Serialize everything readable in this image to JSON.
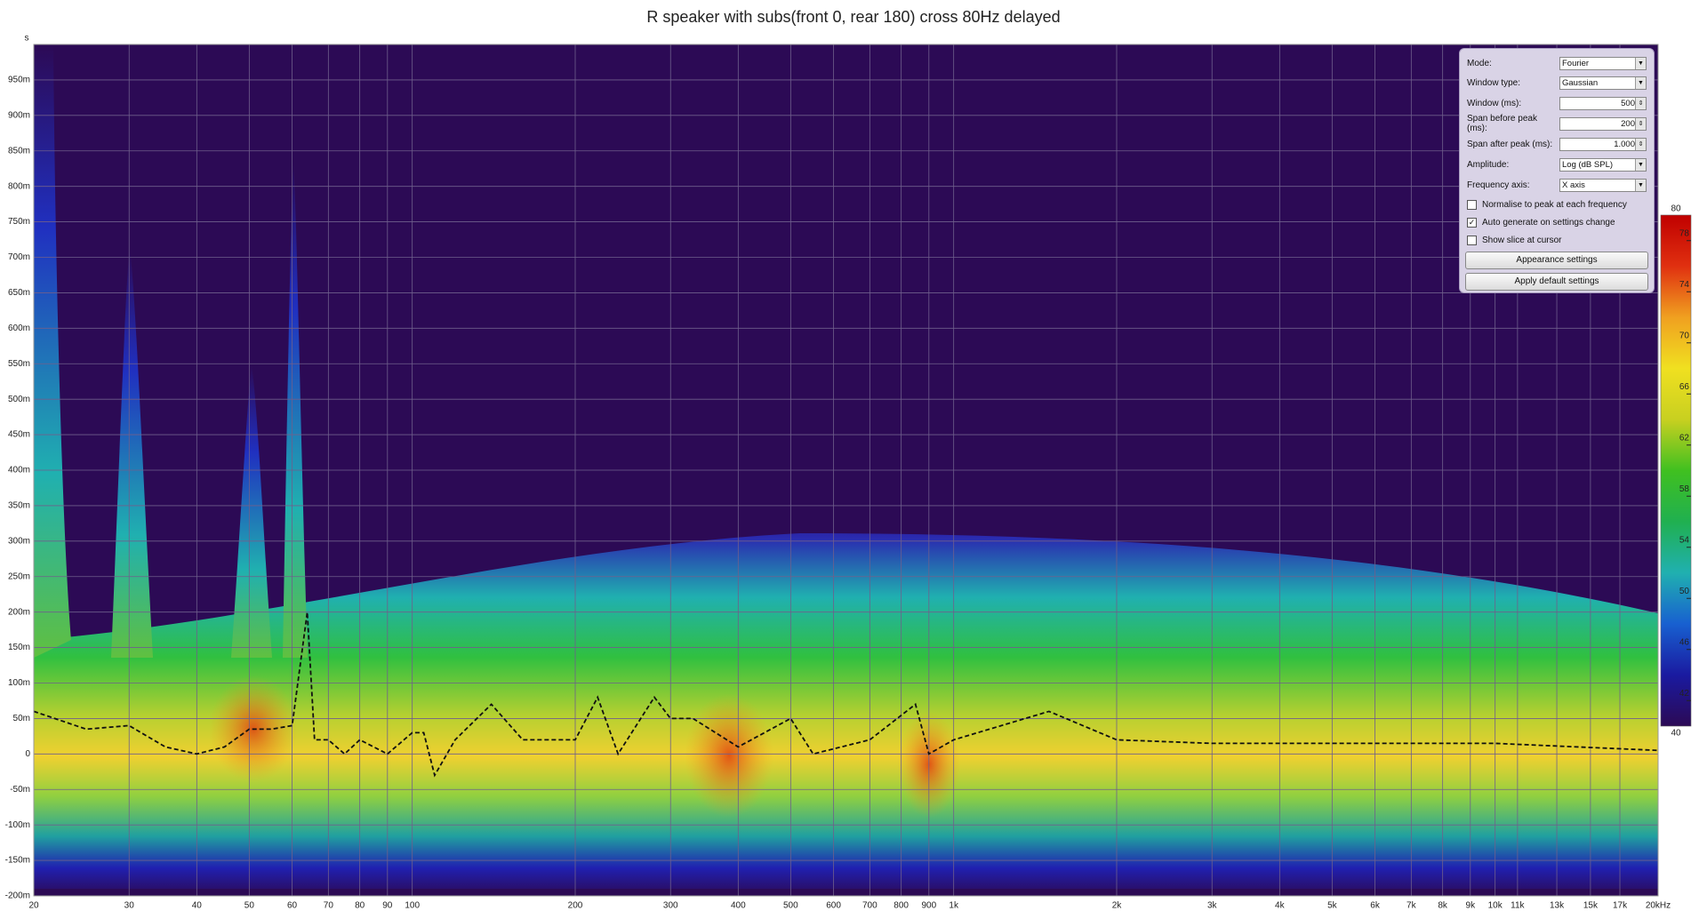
{
  "chart_data": {
    "type": "spectrogram",
    "title": "R speaker with subs(front 0, rear 180) cross 80Hz delayed",
    "y_unit": "s",
    "x_log": true,
    "grid": true,
    "xlim": [
      20,
      20000
    ],
    "ylim": [
      -0.2,
      1.0
    ],
    "xticks": [
      20,
      30,
      40,
      50,
      60,
      70,
      80,
      90,
      100,
      200,
      300,
      400,
      500,
      600,
      700,
      800,
      900,
      {
        "value": 1000,
        "label": "1k"
      },
      {
        "value": 2000,
        "label": "2k"
      },
      {
        "value": 3000,
        "label": "3k"
      },
      {
        "value": 4000,
        "label": "4k"
      },
      {
        "value": 5000,
        "label": "5k"
      },
      {
        "value": 6000,
        "label": "6k"
      },
      {
        "value": 7000,
        "label": "7k"
      },
      {
        "value": 8000,
        "label": "8k"
      },
      {
        "value": 9000,
        "label": "9k"
      },
      {
        "value": 10000,
        "label": "10k"
      },
      {
        "value": 11000,
        "label": "11k"
      },
      {
        "value": 13000,
        "label": "13k"
      },
      {
        "value": 15000,
        "label": "15k"
      },
      {
        "value": 17000,
        "label": "17k"
      },
      {
        "value": 20000,
        "label": "20kHz"
      }
    ],
    "yticks": [
      {
        "value": -0.2,
        "label": "-200m"
      },
      {
        "value": -0.15,
        "label": "-150m"
      },
      {
        "value": -0.1,
        "label": "-100m"
      },
      {
        "value": -0.05,
        "label": "-50m"
      },
      0,
      {
        "value": 0.05,
        "label": "50m"
      },
      {
        "value": 0.1,
        "label": "100m"
      },
      {
        "value": 0.15,
        "label": "150m"
      },
      {
        "value": 0.2,
        "label": "200m"
      },
      {
        "value": 0.25,
        "label": "250m"
      },
      {
        "value": 0.3,
        "label": "300m"
      },
      {
        "value": 0.35,
        "label": "350m"
      },
      {
        "value": 0.4,
        "label": "400m"
      },
      {
        "value": 0.45,
        "label": "450m"
      },
      {
        "value": 0.5,
        "label": "500m"
      },
      {
        "value": 0.55,
        "label": "550m"
      },
      {
        "value": 0.6,
        "label": "600m"
      },
      {
        "value": 0.65,
        "label": "650m"
      },
      {
        "value": 0.7,
        "label": "700m"
      },
      {
        "value": 0.75,
        "label": "750m"
      },
      {
        "value": 0.8,
        "label": "800m"
      },
      {
        "value": 0.85,
        "label": "850m"
      },
      {
        "value": 0.9,
        "label": "900m"
      },
      {
        "value": 0.95,
        "label": "950m"
      }
    ],
    "peak_line": {
      "color": "#111111",
      "x": [
        20,
        25,
        30,
        35,
        40,
        45,
        50,
        55,
        60,
        64,
        66,
        70,
        75,
        80,
        90,
        100,
        105,
        110,
        120,
        140,
        160,
        200,
        220,
        240,
        280,
        300,
        330,
        400,
        500,
        550,
        700,
        850,
        900,
        1000,
        1500,
        2000,
        3000,
        5000,
        10000,
        20000
      ],
      "values": [
        0.06,
        0.035,
        0.04,
        0.01,
        0.0,
        0.01,
        0.035,
        0.035,
        0.04,
        0.2,
        0.02,
        0.02,
        0.0,
        0.02,
        0.0,
        0.03,
        0.03,
        -0.03,
        0.02,
        0.07,
        0.02,
        0.02,
        0.08,
        0.0,
        0.08,
        0.05,
        0.05,
        0.01,
        0.05,
        0.0,
        0.02,
        0.07,
        0.0,
        0.02,
        0.06,
        0.02,
        0.015,
        0.015,
        0.015,
        0.005
      ]
    },
    "colorbar": {
      "lim": [
        40,
        80
      ],
      "ticks": [
        40,
        42,
        46,
        50,
        54,
        58,
        62,
        66,
        70,
        74,
        78,
        80
      ],
      "colors": [
        "#2c0a55",
        "#1a1aa0",
        "#1860d0",
        "#20b0b0",
        "#20b050",
        "#40c020",
        "#c8d020",
        "#f0e020",
        "#f0a020",
        "#e03010",
        "#c00000"
      ]
    }
  },
  "panel": {
    "fields": [
      {
        "label": "Mode:",
        "value": "Fourier",
        "control": "select"
      },
      {
        "label": "Window type:",
        "value": "Gaussian",
        "control": "select"
      },
      {
        "label": "Window (ms):",
        "value": "500",
        "control": "spin"
      },
      {
        "label": "Span before peak (ms):",
        "value": "200",
        "control": "spin"
      },
      {
        "label": "Span after peak (ms):",
        "value": "1.000",
        "control": "spin"
      },
      {
        "label": "Amplitude:",
        "value": "Log (dB SPL)",
        "control": "select"
      },
      {
        "label": "Frequency axis:",
        "value": "X axis",
        "control": "select"
      }
    ],
    "checkboxes": [
      {
        "label": "Normalise to peak at each frequency",
        "checked": false
      },
      {
        "label": "Auto generate on settings change",
        "checked": true
      },
      {
        "label": "Show slice at cursor",
        "checked": false
      }
    ],
    "buttons": [
      "Appearance settings",
      "Apply default settings"
    ]
  }
}
